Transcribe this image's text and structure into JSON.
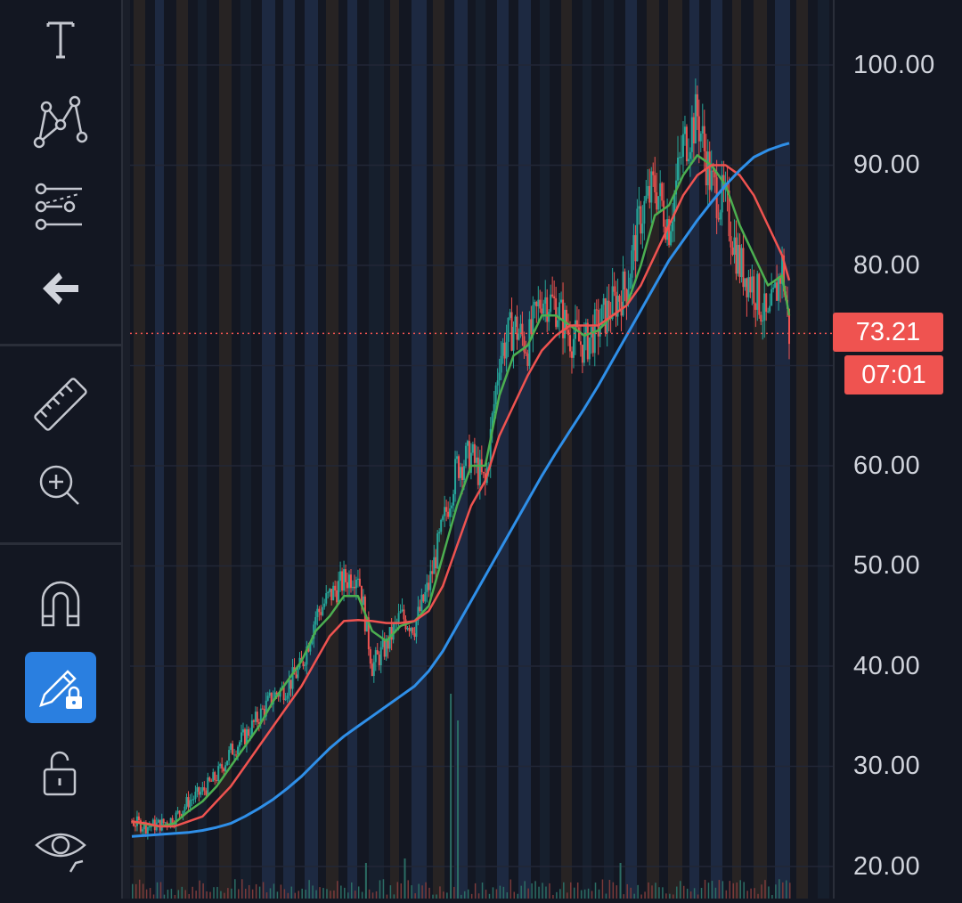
{
  "toolbar": {
    "tools": [
      {
        "name": "text-tool",
        "icon": "text-icon",
        "active": false
      },
      {
        "name": "pattern-tool",
        "icon": "pattern-icon",
        "active": false
      },
      {
        "name": "prediction-tool",
        "icon": "prediction-icon",
        "active": false
      },
      {
        "name": "back-tool",
        "icon": "arrow-left-icon",
        "active": false
      },
      {
        "name": "measure-tool",
        "icon": "ruler-icon",
        "active": false
      },
      {
        "name": "zoom-in-tool",
        "icon": "zoom-in-icon",
        "active": false
      },
      {
        "name": "magnet-tool",
        "icon": "magnet-icon",
        "active": false
      },
      {
        "name": "stay-in-drawing-mode-tool",
        "icon": "pencil-lock-icon",
        "active": true
      },
      {
        "name": "lock-drawings-tool",
        "icon": "unlock-icon",
        "active": false
      },
      {
        "name": "hide-drawings-tool",
        "icon": "eye-icon",
        "active": false
      }
    ]
  },
  "price_scale": {
    "labels": [
      "100.00",
      "90.00",
      "80.00",
      "60.00",
      "50.00",
      "40.00",
      "30.00",
      "20.00"
    ]
  },
  "last_price": {
    "value": "73.21",
    "countdown": "07:01"
  },
  "colors": {
    "background": "#131722",
    "up": "#26a69a",
    "down": "#ef5350",
    "ma_fast": "#4caf50",
    "ma_mid": "#ef5350",
    "ma_slow": "#2f8fe8",
    "accent": "#2a7fe0"
  },
  "chart_data": {
    "type": "line",
    "title": "",
    "xlabel": "",
    "ylabel": "",
    "ylim": [
      18,
      102
    ],
    "price_scale_ticks": [
      20,
      30,
      40,
      50,
      60,
      80,
      90,
      100
    ],
    "last_price": 73.21,
    "grid": true,
    "x": [
      0,
      4,
      8,
      12,
      16,
      20,
      24,
      28,
      32,
      36,
      40,
      44,
      48,
      52,
      56,
      60,
      64,
      68,
      72,
      76,
      80,
      84,
      88,
      92,
      96,
      100,
      104,
      108,
      112,
      116,
      120,
      124,
      128,
      132,
      136,
      140,
      144,
      148,
      152,
      156,
      160,
      164,
      168,
      172,
      176,
      180,
      184,
      186
    ],
    "series": [
      {
        "values": [
          24.5,
          24.0,
          24.2,
          24.8,
          26.5,
          27.5,
          29.0,
          31.5,
          33.0,
          35.0,
          37.0,
          38.0,
          40.0,
          45.0,
          47.0,
          48.5,
          49.5,
          40.0,
          42.0,
          45.0,
          44.0,
          48.0,
          54.0,
          60.0,
          61.0,
          58.0,
          71.0,
          74.0,
          72.0,
          77.0,
          76.0,
          73.0,
          72.0,
          74.0,
          76.0,
          78.0,
          85.0,
          88.0,
          84.0,
          92.0,
          95.0,
          88.0,
          86.0,
          80.0,
          78.0,
          74.0,
          80.0,
          73.21
        ]
      },
      {
        "values": [
          24.5,
          24.2,
          24.0,
          24.3,
          25.5,
          26.5,
          28.0,
          30.0,
          32.0,
          34.0,
          36.5,
          38.5,
          40.5,
          43.5,
          45.0,
          47.0,
          47.0,
          43.5,
          42.5,
          44.0,
          44.5,
          46.0,
          51.0,
          56.0,
          60.0,
          60.0,
          67.0,
          71.0,
          72.0,
          75.0,
          75.0,
          74.0,
          73.0,
          73.5,
          75.0,
          76.0,
          80.0,
          85.0,
          86.0,
          89.0,
          91.0,
          90.0,
          88.0,
          84.0,
          81.0,
          78.0,
          79.0,
          75.0
        ]
      },
      {
        "values": [
          24.5,
          24.3,
          24.0,
          24.0,
          24.5,
          25.0,
          26.5,
          28.0,
          30.0,
          32.0,
          34.0,
          36.0,
          38.0,
          40.5,
          43.0,
          44.5,
          44.6,
          44.5,
          44.3,
          44.3,
          44.5,
          45.5,
          48.0,
          52.0,
          56.0,
          58.5,
          63.0,
          66.0,
          69.0,
          71.5,
          73.0,
          74.0,
          74.0,
          74.0,
          75.0,
          76.0,
          78.0,
          81.0,
          84.0,
          87.0,
          89.0,
          90.0,
          90.0,
          89.0,
          87.0,
          84.0,
          81.0,
          78.5
        ]
      },
      {
        "values": [
          23.0,
          23.1,
          23.2,
          23.3,
          23.4,
          23.6,
          23.9,
          24.3,
          25.0,
          25.8,
          26.7,
          27.8,
          29.0,
          30.4,
          31.8,
          33.0,
          34.0,
          35.0,
          36.0,
          37.0,
          38.0,
          39.5,
          41.5,
          44.0,
          46.5,
          49.0,
          51.5,
          54.0,
          56.5,
          59.0,
          61.3,
          63.5,
          65.7,
          68.0,
          70.5,
          73.0,
          75.5,
          78.0,
          80.5,
          82.5,
          84.5,
          86.3,
          88.0,
          89.5,
          90.8,
          91.5,
          92.0,
          92.2
        ]
      }
    ]
  }
}
